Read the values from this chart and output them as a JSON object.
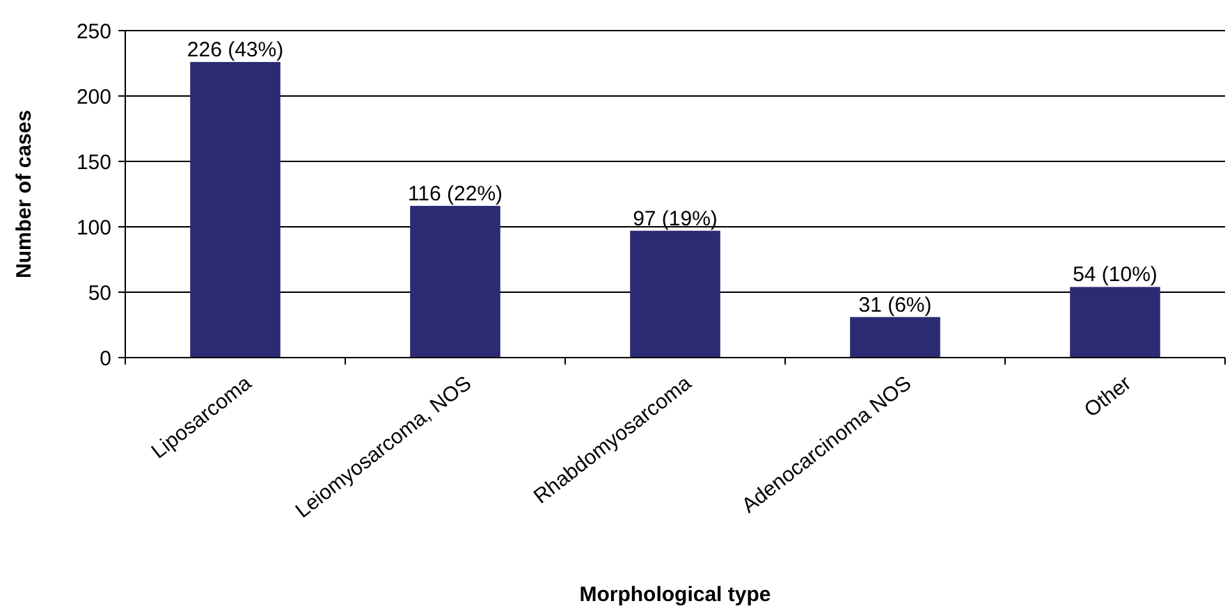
{
  "chart_data": {
    "type": "bar",
    "xlabel": "Morphological type",
    "ylabel": "Number of cases",
    "categories": [
      "Liposarcoma",
      "Leiomyosarcoma, NOS",
      "Rhabdomyosarcoma",
      "Adenocarcinoma NOS",
      "Other"
    ],
    "values": [
      226,
      116,
      97,
      31,
      54
    ],
    "value_labels": [
      "226 (43%)",
      "116 (22%)",
      "97 (19%)",
      "31 (6%)",
      "54 (10%)"
    ],
    "color": "#2b2a72",
    "ylim": [
      0,
      250
    ],
    "yticks": [
      0,
      50,
      100,
      150,
      200,
      250
    ],
    "grid": "y"
  }
}
